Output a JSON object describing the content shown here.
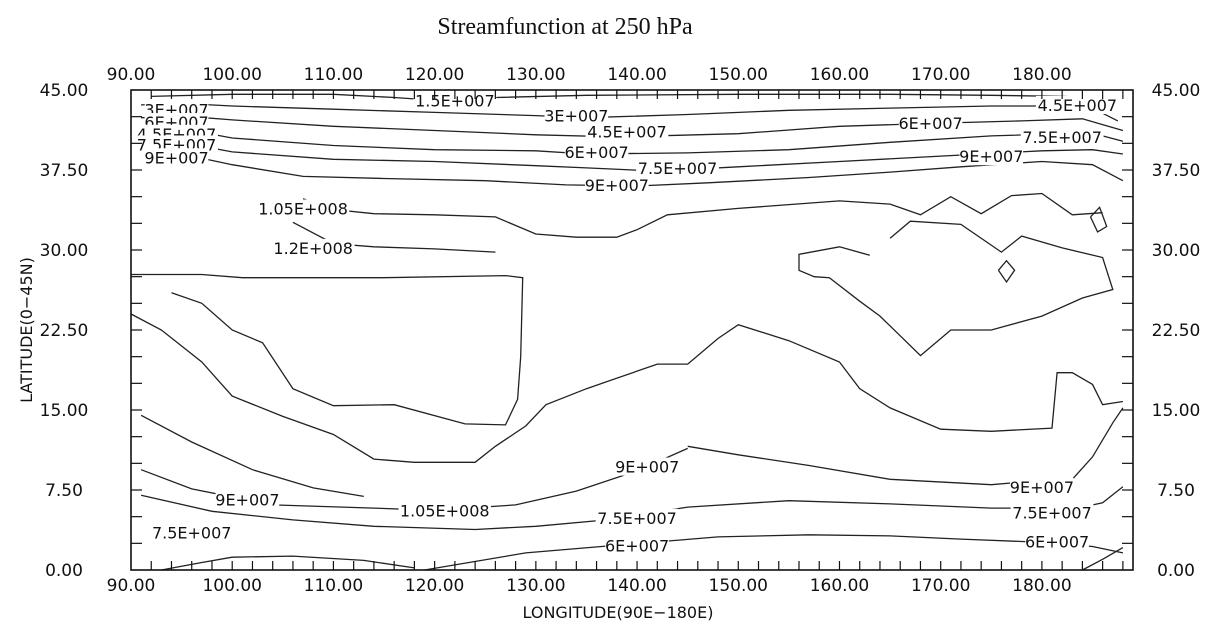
{
  "chart_data": {
    "type": "contour",
    "title": "Streamfunction at 250 hPa",
    "xlabel": "LONGITUDE(90E−180E)",
    "ylabel": "LATITUDE(0−45N)",
    "xlim": [
      90,
      189
    ],
    "ylim": [
      0,
      45
    ],
    "xticks": [
      90,
      100,
      110,
      120,
      130,
      140,
      150,
      160,
      170,
      180
    ],
    "xtick_labels": [
      "90.00",
      "100.00",
      "110.00",
      "120.00",
      "130.00",
      "140.00",
      "150.00",
      "160.00",
      "170.00",
      "180.00"
    ],
    "yticks": [
      0,
      7.5,
      15,
      22.5,
      30,
      37.5,
      45
    ],
    "ytick_labels": [
      "0.00",
      "7.50",
      "15.00",
      "22.50",
      "30.00",
      "37.50",
      "45.00"
    ],
    "grid": false,
    "contours": [
      {
        "level": 15000000,
        "label": "1.5E+007",
        "points": [
          [
            92,
            44.4
          ],
          [
            100,
            44.6
          ],
          [
            110,
            44.6
          ],
          [
            116,
            44.3
          ],
          [
            119,
            44.1
          ],
          [
            126,
            44.3
          ],
          [
            135,
            44.5
          ],
          [
            150,
            44.6
          ],
          [
            165,
            44.6
          ],
          [
            175,
            44.5
          ],
          [
            182,
            44.4
          ],
          [
            185,
            44.3
          ],
          [
            187,
            43.3
          ]
        ]
      },
      {
        "level": 30000000,
        "label": "3E+007",
        "points": [
          [
            91,
            43.6
          ],
          [
            96,
            43.7
          ],
          [
            100,
            43.5
          ],
          [
            110,
            43.2
          ],
          [
            120,
            42.9
          ],
          [
            130,
            42.6
          ],
          [
            135,
            42.4
          ],
          [
            145,
            42.7
          ],
          [
            155,
            43.1
          ],
          [
            165,
            43.3
          ],
          [
            175,
            43.5
          ],
          [
            182,
            43.5
          ],
          [
            185,
            43.3
          ],
          [
            187.5,
            42.1
          ]
        ]
      },
      {
        "level": 45000000,
        "label": "4.5E+007",
        "points": [
          [
            91,
            42.4
          ],
          [
            96,
            42.5
          ],
          [
            100,
            42.2
          ],
          [
            110,
            41.6
          ],
          [
            120,
            41.2
          ],
          [
            130,
            40.8
          ],
          [
            138,
            40.6
          ],
          [
            150,
            40.9
          ],
          [
            160,
            41.6
          ],
          [
            170,
            41.9
          ],
          [
            178,
            42.1
          ],
          [
            184,
            42.3
          ],
          [
            188,
            41.2
          ]
        ]
      },
      {
        "level": 60000000,
        "label": "6E+007",
        "points": [
          [
            91,
            41.2
          ],
          [
            96,
            41.2
          ],
          [
            100,
            40.5
          ],
          [
            110,
            39.8
          ],
          [
            120,
            39.4
          ],
          [
            130,
            39.3
          ],
          [
            135,
            39.0
          ],
          [
            145,
            39.1
          ],
          [
            155,
            39.4
          ],
          [
            165,
            40.1
          ],
          [
            175,
            40.7
          ],
          [
            182,
            40.9
          ],
          [
            186,
            40.7
          ],
          [
            188,
            40.2
          ]
        ]
      },
      {
        "level": 75000000,
        "label": "7.5E+007",
        "points": [
          [
            91,
            40.1
          ],
          [
            96,
            39.9
          ],
          [
            100,
            39.2
          ],
          [
            110,
            38.5
          ],
          [
            120,
            38.3
          ],
          [
            130,
            37.9
          ],
          [
            135,
            37.7
          ],
          [
            142,
            37.4
          ],
          [
            150,
            37.8
          ],
          [
            160,
            38.3
          ],
          [
            170,
            38.8
          ],
          [
            180,
            39.3
          ],
          [
            185,
            39.4
          ],
          [
            188,
            39.0
          ]
        ]
      },
      {
        "level": 90000000,
        "label": "9E+007",
        "points": [
          [
            91,
            39.3
          ],
          [
            96,
            38.8
          ],
          [
            100,
            38.0
          ],
          [
            107,
            36.9
          ],
          [
            115,
            36.7
          ],
          [
            125,
            36.5
          ],
          [
            133,
            36.1
          ],
          [
            140,
            36.0
          ],
          [
            147,
            36.3
          ],
          [
            157,
            36.8
          ],
          [
            165,
            37.3
          ],
          [
            172,
            37.8
          ],
          [
            180,
            38.3
          ],
          [
            185,
            38.0
          ],
          [
            188,
            36.5
          ]
        ]
      },
      {
        "level": 105000000,
        "label": "1.05E+008",
        "points": [
          [
            107,
            34.8
          ],
          [
            110,
            33.8
          ],
          [
            114,
            33.4
          ],
          [
            120,
            33.3
          ],
          [
            126,
            33.1
          ],
          [
            130,
            31.5
          ],
          [
            134,
            31.2
          ],
          [
            138,
            31.2
          ],
          [
            140,
            31.9
          ],
          [
            143,
            33.3
          ],
          [
            150,
            33.9
          ],
          [
            160,
            34.6
          ],
          [
            165,
            34.3
          ],
          [
            168,
            33.3
          ],
          [
            171,
            35.0
          ],
          [
            174,
            33.4
          ],
          [
            177,
            35.1
          ],
          [
            180,
            35.3
          ],
          [
            183,
            33.3
          ],
          [
            186,
            33.5
          ]
        ]
      },
      {
        "level": 120000000,
        "label": "1.2E+008",
        "points": [
          [
            106,
            32.6
          ],
          [
            110,
            30.6
          ],
          [
            114,
            30.3
          ],
          [
            120,
            30.1
          ],
          [
            126,
            29.8
          ]
        ]
      },
      {
        "level": 120000000,
        "label": "",
        "points": [
          [
            90,
            27.7
          ],
          [
            97,
            27.7
          ],
          [
            101,
            27.4
          ],
          [
            115,
            27.4
          ],
          [
            127,
            27.6
          ],
          [
            128.7,
            27.4
          ],
          [
            128.5,
            20
          ],
          [
            128.2,
            16
          ],
          [
            127,
            13.6
          ],
          [
            123,
            13.7
          ],
          [
            116,
            15.5
          ],
          [
            110,
            15.4
          ],
          [
            106,
            17
          ],
          [
            103,
            21.3
          ],
          [
            100,
            22.5
          ],
          [
            97,
            25
          ],
          [
            94,
            26
          ]
        ]
      },
      {
        "level": 120000000,
        "label": "",
        "points": [
          [
            163,
            29.5
          ],
          [
            160,
            30.3
          ],
          [
            156,
            29.6
          ],
          [
            156,
            28.1
          ],
          [
            157.5,
            27.5
          ],
          [
            159,
            27.4
          ],
          [
            162,
            25.2
          ],
          [
            164,
            23.8
          ],
          [
            168,
            20.1
          ],
          [
            171,
            22.5
          ],
          [
            175,
            22.5
          ],
          [
            180,
            23.8
          ],
          [
            184,
            25.5
          ],
          [
            187,
            26.3
          ],
          [
            186,
            29.3
          ],
          [
            182,
            30.2
          ],
          [
            178,
            31.3
          ],
          [
            176,
            29.8
          ],
          [
            172,
            32.4
          ],
          [
            167,
            32.7
          ],
          [
            165,
            31.1
          ]
        ]
      },
      {
        "level": 120000000,
        "label": "",
        "points": [
          [
            175.7,
            28.1
          ],
          [
            176.5,
            29.0
          ],
          [
            177.3,
            28.1
          ],
          [
            176.5,
            27.0
          ],
          [
            175.7,
            28.1
          ]
        ]
      },
      {
        "level": 120000000,
        "label": "",
        "points": [
          [
            184.8,
            33.1
          ],
          [
            185.7,
            34.0
          ],
          [
            186.4,
            32.2
          ],
          [
            185.5,
            31.7
          ],
          [
            184.8,
            33.1
          ]
        ]
      },
      {
        "level": 105000000,
        "label": "",
        "points": [
          [
            90,
            24.0
          ],
          [
            93,
            22.5
          ],
          [
            97,
            19.5
          ],
          [
            100,
            16.3
          ],
          [
            105,
            14.4
          ],
          [
            110,
            12.7
          ],
          [
            114,
            10.4
          ],
          [
            118,
            10.1
          ],
          [
            124,
            10.1
          ],
          [
            126,
            11.6
          ],
          [
            129,
            13.5
          ],
          [
            131,
            15.5
          ],
          [
            135,
            17
          ],
          [
            142,
            19.3
          ],
          [
            145,
            19.3
          ],
          [
            148,
            21.7
          ],
          [
            150,
            23.0
          ],
          [
            155,
            21.5
          ],
          [
            160,
            19.5
          ],
          [
            162,
            17
          ],
          [
            165,
            15.2
          ],
          [
            170,
            13.2
          ],
          [
            175,
            13.0
          ],
          [
            181,
            13.3
          ],
          [
            181.5,
            18.5
          ],
          [
            183,
            18.5
          ],
          [
            185,
            17.4
          ],
          [
            186,
            15.5
          ],
          [
            188,
            15.8
          ]
        ]
      },
      {
        "level": 105000000,
        "label": "1.05E+008",
        "points": [
          [
            91,
            14.5
          ],
          [
            96,
            12.0
          ],
          [
            102,
            9.4
          ],
          [
            108,
            7.7
          ],
          [
            113,
            6.9
          ]
        ]
      },
      {
        "level": 90000000,
        "label": "9E+007",
        "points": [
          [
            91,
            9.4
          ],
          [
            96,
            7.6
          ],
          [
            104,
            6.1
          ],
          [
            114,
            5.8
          ],
          [
            120,
            5.6
          ],
          [
            128,
            6.1
          ],
          [
            134,
            7.4
          ],
          [
            140,
            9.3
          ],
          [
            145,
            11.4
          ]
        ]
      },
      {
        "level": 90000000,
        "label": "9E+007",
        "points": [
          [
            145,
            11.6
          ],
          [
            150,
            10.8
          ],
          [
            157,
            9.8
          ],
          [
            165,
            8.5
          ],
          [
            175,
            8.0
          ],
          [
            180,
            8.4
          ],
          [
            183,
            8.5
          ],
          [
            185,
            10.6
          ],
          [
            187,
            13.8
          ],
          [
            188,
            15.2
          ]
        ]
      },
      {
        "level": 75000000,
        "label": "7.5E+007",
        "points": [
          [
            91,
            7.0
          ],
          [
            98,
            5.5
          ],
          [
            106,
            4.7
          ],
          [
            114,
            4.1
          ],
          [
            124,
            3.8
          ],
          [
            130,
            4.1
          ],
          [
            137,
            4.7
          ],
          [
            145,
            5.9
          ],
          [
            155,
            6.5
          ],
          [
            165,
            6.2
          ],
          [
            175,
            5.8
          ],
          [
            180,
            5.8
          ],
          [
            184,
            5.9
          ],
          [
            186,
            6.3
          ],
          [
            188,
            7.8
          ]
        ]
      },
      {
        "level": 60000000,
        "label": "6E+007",
        "points": [
          [
            119,
            0.0
          ],
          [
            129,
            1.6
          ],
          [
            139,
            2.4
          ],
          [
            148,
            3.1
          ],
          [
            157,
            3.3
          ],
          [
            165,
            3.2
          ],
          [
            172,
            2.9
          ],
          [
            180,
            2.6
          ],
          [
            185,
            2.2
          ],
          [
            188,
            1.6
          ]
        ]
      },
      {
        "level": 45000000,
        "label": "",
        "points": [
          [
            93,
            0.0
          ],
          [
            97,
            0.7
          ],
          [
            100,
            1.2
          ],
          [
            106,
            1.3
          ],
          [
            113,
            0.9
          ],
          [
            118,
            0.2
          ]
        ]
      },
      {
        "level": 45000000,
        "label": "",
        "points": [
          [
            184,
            0.0
          ],
          [
            186,
            1.0
          ],
          [
            188,
            2.1
          ]
        ]
      }
    ],
    "contour_labels": [
      {
        "text": "1.5E+007",
        "x": 122,
        "y": 43.9
      },
      {
        "text": "3E+007",
        "x": 134,
        "y": 42.5
      },
      {
        "text": "4.5E+007",
        "x": 139,
        "y": 41.0
      },
      {
        "text": "6E+007",
        "x": 136,
        "y": 39.1
      },
      {
        "text": "7.5E+007",
        "x": 144,
        "y": 37.6
      },
      {
        "text": "9E+007",
        "x": 138,
        "y": 36.0
      },
      {
        "text": "1.05E+008",
        "x": 107,
        "y": 33.8
      },
      {
        "text": "1.2E+008",
        "x": 108,
        "y": 30.1
      },
      {
        "text": "3E+007",
        "x": 94.5,
        "y": 43.1
      },
      {
        "text": "6E+007",
        "x": 94.5,
        "y": 41.9
      },
      {
        "text": "4.5E+007",
        "x": 94.5,
        "y": 40.8
      },
      {
        "text": "7.5E+007",
        "x": 94.5,
        "y": 39.8
      },
      {
        "text": "9E+007",
        "x": 94.5,
        "y": 38.6
      },
      {
        "text": "4.5E+007",
        "x": 183.5,
        "y": 43.5
      },
      {
        "text": "6E+007",
        "x": 169,
        "y": 41.8
      },
      {
        "text": "7.5E+007",
        "x": 182,
        "y": 40.5
      },
      {
        "text": "9E+007",
        "x": 175,
        "y": 38.7
      },
      {
        "text": "9E+007",
        "x": 101.5,
        "y": 6.5
      },
      {
        "text": "1.05E+008",
        "x": 121,
        "y": 5.5
      },
      {
        "text": "7.5E+007",
        "x": 96,
        "y": 3.4
      },
      {
        "text": "9E+007",
        "x": 141,
        "y": 9.6
      },
      {
        "text": "7.5E+007",
        "x": 140,
        "y": 4.8
      },
      {
        "text": "6E+007",
        "x": 140,
        "y": 2.2
      },
      {
        "text": "9E+007",
        "x": 180,
        "y": 7.7
      },
      {
        "text": "7.5E+007",
        "x": 181,
        "y": 5.3
      },
      {
        "text": "6E+007",
        "x": 181.5,
        "y": 2.6
      }
    ]
  }
}
